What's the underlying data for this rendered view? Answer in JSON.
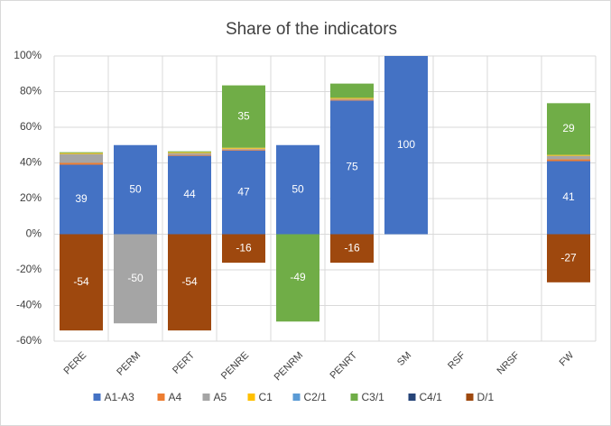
{
  "chart_data": {
    "type": "bar",
    "stacked": true,
    "title": "Share of the indicators",
    "categories": [
      "PERE",
      "PERM",
      "PERT",
      "PENRE",
      "PENRM",
      "PENRT",
      "SM",
      "RSF",
      "NRSF",
      "FW"
    ],
    "series": [
      {
        "name": "A1-A3",
        "color": "#4472c4",
        "values": [
          39,
          50,
          44,
          47,
          50,
          75,
          100,
          0,
          0,
          41
        ]
      },
      {
        "name": "A4",
        "color": "#ed7d31",
        "values": [
          1,
          0,
          0.5,
          0.5,
          0,
          0.5,
          0,
          0,
          0,
          1
        ]
      },
      {
        "name": "A5",
        "color": "#a5a5a5",
        "values": [
          5,
          -50,
          1,
          0.5,
          0,
          0.5,
          0,
          0,
          0,
          2
        ]
      },
      {
        "name": "C1",
        "color": "#ffc000",
        "values": [
          0.5,
          0,
          0.5,
          0.5,
          0,
          0.5,
          0,
          0,
          0,
          0.5
        ]
      },
      {
        "name": "C2/1",
        "color": "#5b9bd5",
        "values": [
          0,
          0,
          0,
          0,
          0,
          0,
          0,
          0,
          0,
          0
        ]
      },
      {
        "name": "C3/1",
        "color": "#70ad47",
        "values": [
          0.5,
          0,
          0.5,
          35,
          -49,
          8,
          0,
          0,
          0,
          29
        ]
      },
      {
        "name": "C4/1",
        "color": "#264478",
        "values": [
          0,
          0,
          0,
          0,
          0,
          0,
          0,
          0,
          0,
          0
        ]
      },
      {
        "name": "D/1",
        "color": "#9e480e",
        "values": [
          -54,
          0,
          -54,
          -16,
          0,
          -16,
          0,
          0,
          0,
          -27
        ]
      }
    ],
    "ylim": [
      -60,
      100
    ],
    "yticks": [
      {
        "value": -60,
        "label": "-60%"
      },
      {
        "value": -40,
        "label": "-40%"
      },
      {
        "value": -20,
        "label": "-20%"
      },
      {
        "value": 0,
        "label": "0%"
      },
      {
        "value": 20,
        "label": "20%"
      },
      {
        "value": 40,
        "label": "40%"
      },
      {
        "value": 60,
        "label": "60%"
      },
      {
        "value": 80,
        "label": "80%"
      },
      {
        "value": 100,
        "label": "100%"
      }
    ],
    "grid": true,
    "legend": "bottom"
  }
}
